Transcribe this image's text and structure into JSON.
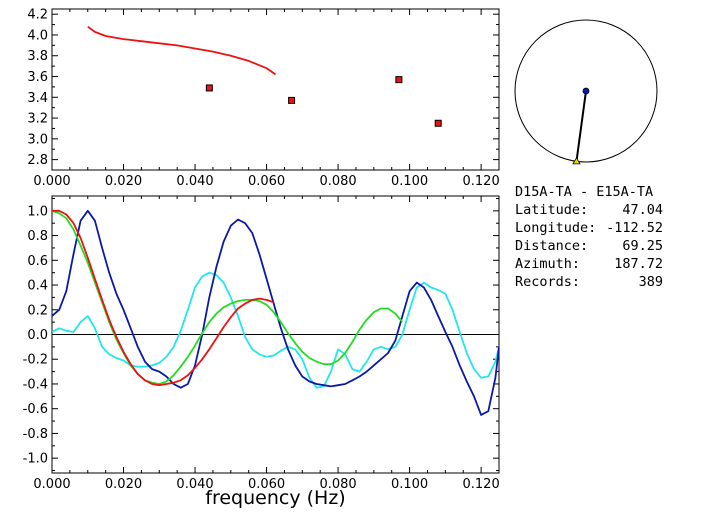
{
  "info": {
    "title": "D15A-TA  -  E15A-TA",
    "rows": [
      {
        "label": "Latitude:",
        "value": "47.04"
      },
      {
        "label": "Longitude:",
        "value": "-112.52"
      },
      {
        "label": "Distance:",
        "value": "69.25"
      },
      {
        "label": "Azimuth:",
        "value": "187.72"
      },
      {
        "label": "Records:",
        "value": "389"
      }
    ]
  },
  "azimuth_deg": 187.72,
  "colors": {
    "red": "#ee1111",
    "green": "#22dd22",
    "blue": "#0a1aa8",
    "cyan": "#22e6ee",
    "axis": "#000000",
    "station_dot": "#0a1aa8",
    "station_marker": "#f2d600"
  },
  "chart_data": [
    {
      "type": "scatter",
      "panel": "velocity",
      "xlim": [
        0.0,
        0.125
      ],
      "ylim": [
        2.7,
        4.25
      ],
      "xticks": [
        "0.000",
        "0.020",
        "0.040",
        "0.060",
        "0.080",
        "0.100",
        "0.120"
      ],
      "yticks": [
        "2.8",
        "3.0",
        "3.2",
        "3.4",
        "3.6",
        "3.8",
        "4.0",
        "4.2"
      ],
      "series": [
        {
          "kind": "line",
          "color": "red",
          "x": [
            0.01,
            0.012,
            0.015,
            0.02,
            0.025,
            0.03,
            0.035,
            0.04,
            0.045,
            0.05,
            0.055,
            0.06,
            0.0625
          ],
          "y": [
            4.08,
            4.03,
            3.99,
            3.96,
            3.94,
            3.92,
            3.9,
            3.87,
            3.84,
            3.8,
            3.75,
            3.68,
            3.62
          ]
        },
        {
          "kind": "points",
          "color": "red",
          "x": [
            0.044,
            0.067,
            0.097,
            0.108
          ],
          "y": [
            3.49,
            3.37,
            3.57,
            3.15
          ]
        }
      ]
    },
    {
      "type": "line",
      "panel": "coherency",
      "xlabel": "frequency (Hz)",
      "xlim": [
        0.0,
        0.125
      ],
      "ylim": [
        -1.12,
        1.12
      ],
      "xticks": [
        "0.000",
        "0.020",
        "0.040",
        "0.060",
        "0.080",
        "0.100",
        "0.120"
      ],
      "yticks": [
        "1.0",
        "0.8",
        "0.6",
        "0.4",
        "0.2",
        "0.0",
        "-0.2",
        "-0.4",
        "-0.6",
        "-0.8",
        "-1.0"
      ],
      "series": [
        {
          "color": "cyan",
          "x": [
            0.0,
            0.002,
            0.004,
            0.006,
            0.008,
            0.01,
            0.012,
            0.014,
            0.016,
            0.018,
            0.02,
            0.022,
            0.024,
            0.026,
            0.028,
            0.03,
            0.032,
            0.034,
            0.036,
            0.038,
            0.04,
            0.042,
            0.044,
            0.046,
            0.048,
            0.05,
            0.052,
            0.054,
            0.056,
            0.058,
            0.06,
            0.062,
            0.064,
            0.066,
            0.068,
            0.07,
            0.072,
            0.074,
            0.076,
            0.078,
            0.08,
            0.082,
            0.084,
            0.086,
            0.088,
            0.09,
            0.092,
            0.094,
            0.096,
            0.098,
            0.1,
            0.102,
            0.104,
            0.106,
            0.108,
            0.11,
            0.112,
            0.114,
            0.116,
            0.118,
            0.12,
            0.122,
            0.124,
            0.125
          ],
          "y": [
            0.02,
            0.05,
            0.03,
            0.02,
            0.1,
            0.15,
            0.05,
            -0.1,
            -0.16,
            -0.19,
            -0.21,
            -0.25,
            -0.26,
            -0.26,
            -0.25,
            -0.23,
            -0.18,
            -0.1,
            0.03,
            0.2,
            0.38,
            0.47,
            0.5,
            0.48,
            0.42,
            0.3,
            0.15,
            -0.02,
            -0.12,
            -0.16,
            -0.18,
            -0.17,
            -0.13,
            -0.1,
            -0.12,
            -0.2,
            -0.35,
            -0.43,
            -0.42,
            -0.3,
            -0.12,
            -0.16,
            -0.28,
            -0.3,
            -0.22,
            -0.12,
            -0.1,
            -0.12,
            -0.1,
            0.0,
            0.2,
            0.38,
            0.42,
            0.38,
            0.36,
            0.33,
            0.2,
            0.02,
            -0.15,
            -0.28,
            -0.35,
            -0.34,
            -0.22,
            -0.1
          ]
        },
        {
          "color": "blue",
          "x": [
            0.0,
            0.002,
            0.004,
            0.006,
            0.008,
            0.01,
            0.012,
            0.014,
            0.016,
            0.018,
            0.02,
            0.022,
            0.024,
            0.026,
            0.028,
            0.03,
            0.032,
            0.034,
            0.036,
            0.038,
            0.04,
            0.042,
            0.044,
            0.046,
            0.048,
            0.05,
            0.052,
            0.054,
            0.056,
            0.058,
            0.06,
            0.062,
            0.064,
            0.066,
            0.068,
            0.07,
            0.072,
            0.074,
            0.076,
            0.078,
            0.08,
            0.082,
            0.084,
            0.086,
            0.088,
            0.09,
            0.092,
            0.094,
            0.096,
            0.098,
            0.1,
            0.102,
            0.104,
            0.106,
            0.108,
            0.11,
            0.112,
            0.114,
            0.116,
            0.118,
            0.12,
            0.122,
            0.124,
            0.125
          ],
          "y": [
            0.15,
            0.2,
            0.35,
            0.65,
            0.92,
            1.0,
            0.92,
            0.7,
            0.5,
            0.33,
            0.2,
            0.05,
            -0.1,
            -0.22,
            -0.28,
            -0.3,
            -0.34,
            -0.4,
            -0.43,
            -0.4,
            -0.25,
            0.0,
            0.3,
            0.55,
            0.75,
            0.88,
            0.93,
            0.9,
            0.82,
            0.65,
            0.45,
            0.25,
            0.05,
            -0.12,
            -0.25,
            -0.34,
            -0.38,
            -0.4,
            -0.41,
            -0.42,
            -0.41,
            -0.4,
            -0.37,
            -0.34,
            -0.3,
            -0.25,
            -0.2,
            -0.15,
            -0.05,
            0.15,
            0.35,
            0.42,
            0.38,
            0.28,
            0.15,
            0.02,
            -0.1,
            -0.25,
            -0.38,
            -0.5,
            -0.65,
            -0.62,
            -0.35,
            -0.1
          ]
        },
        {
          "color": "green",
          "x": [
            0.0,
            0.002,
            0.004,
            0.006,
            0.008,
            0.01,
            0.012,
            0.014,
            0.016,
            0.018,
            0.02,
            0.022,
            0.024,
            0.026,
            0.028,
            0.03,
            0.032,
            0.034,
            0.036,
            0.038,
            0.04,
            0.042,
            0.044,
            0.046,
            0.048,
            0.05,
            0.052,
            0.054,
            0.056,
            0.058,
            0.06,
            0.062,
            0.064,
            0.066,
            0.068,
            0.07,
            0.072,
            0.074,
            0.076,
            0.078,
            0.08,
            0.082,
            0.084,
            0.086,
            0.088,
            0.09,
            0.092,
            0.094,
            0.096,
            0.098
          ],
          "y": [
            1.0,
            0.98,
            0.94,
            0.85,
            0.72,
            0.58,
            0.42,
            0.26,
            0.1,
            -0.04,
            -0.15,
            -0.25,
            -0.32,
            -0.37,
            -0.39,
            -0.4,
            -0.38,
            -0.33,
            -0.26,
            -0.18,
            -0.09,
            0.01,
            0.1,
            0.17,
            0.22,
            0.25,
            0.27,
            0.28,
            0.28,
            0.27,
            0.24,
            0.18,
            0.1,
            0.01,
            -0.07,
            -0.14,
            -0.19,
            -0.22,
            -0.24,
            -0.24,
            -0.21,
            -0.15,
            -0.06,
            0.04,
            0.12,
            0.18,
            0.21,
            0.21,
            0.17,
            0.1
          ]
        },
        {
          "color": "red",
          "x": [
            0.0,
            0.002,
            0.004,
            0.006,
            0.008,
            0.01,
            0.012,
            0.014,
            0.016,
            0.018,
            0.02,
            0.022,
            0.024,
            0.026,
            0.028,
            0.03,
            0.032,
            0.034,
            0.036,
            0.038,
            0.04,
            0.042,
            0.044,
            0.046,
            0.048,
            0.05,
            0.052,
            0.054,
            0.056,
            0.058,
            0.06,
            0.062
          ],
          "y": [
            1.0,
            1.0,
            0.97,
            0.9,
            0.78,
            0.62,
            0.45,
            0.28,
            0.12,
            -0.02,
            -0.14,
            -0.24,
            -0.32,
            -0.37,
            -0.4,
            -0.41,
            -0.4,
            -0.39,
            -0.37,
            -0.33,
            -0.27,
            -0.2,
            -0.12,
            -0.03,
            0.06,
            0.14,
            0.21,
            0.25,
            0.28,
            0.29,
            0.28,
            0.26
          ]
        }
      ]
    }
  ]
}
